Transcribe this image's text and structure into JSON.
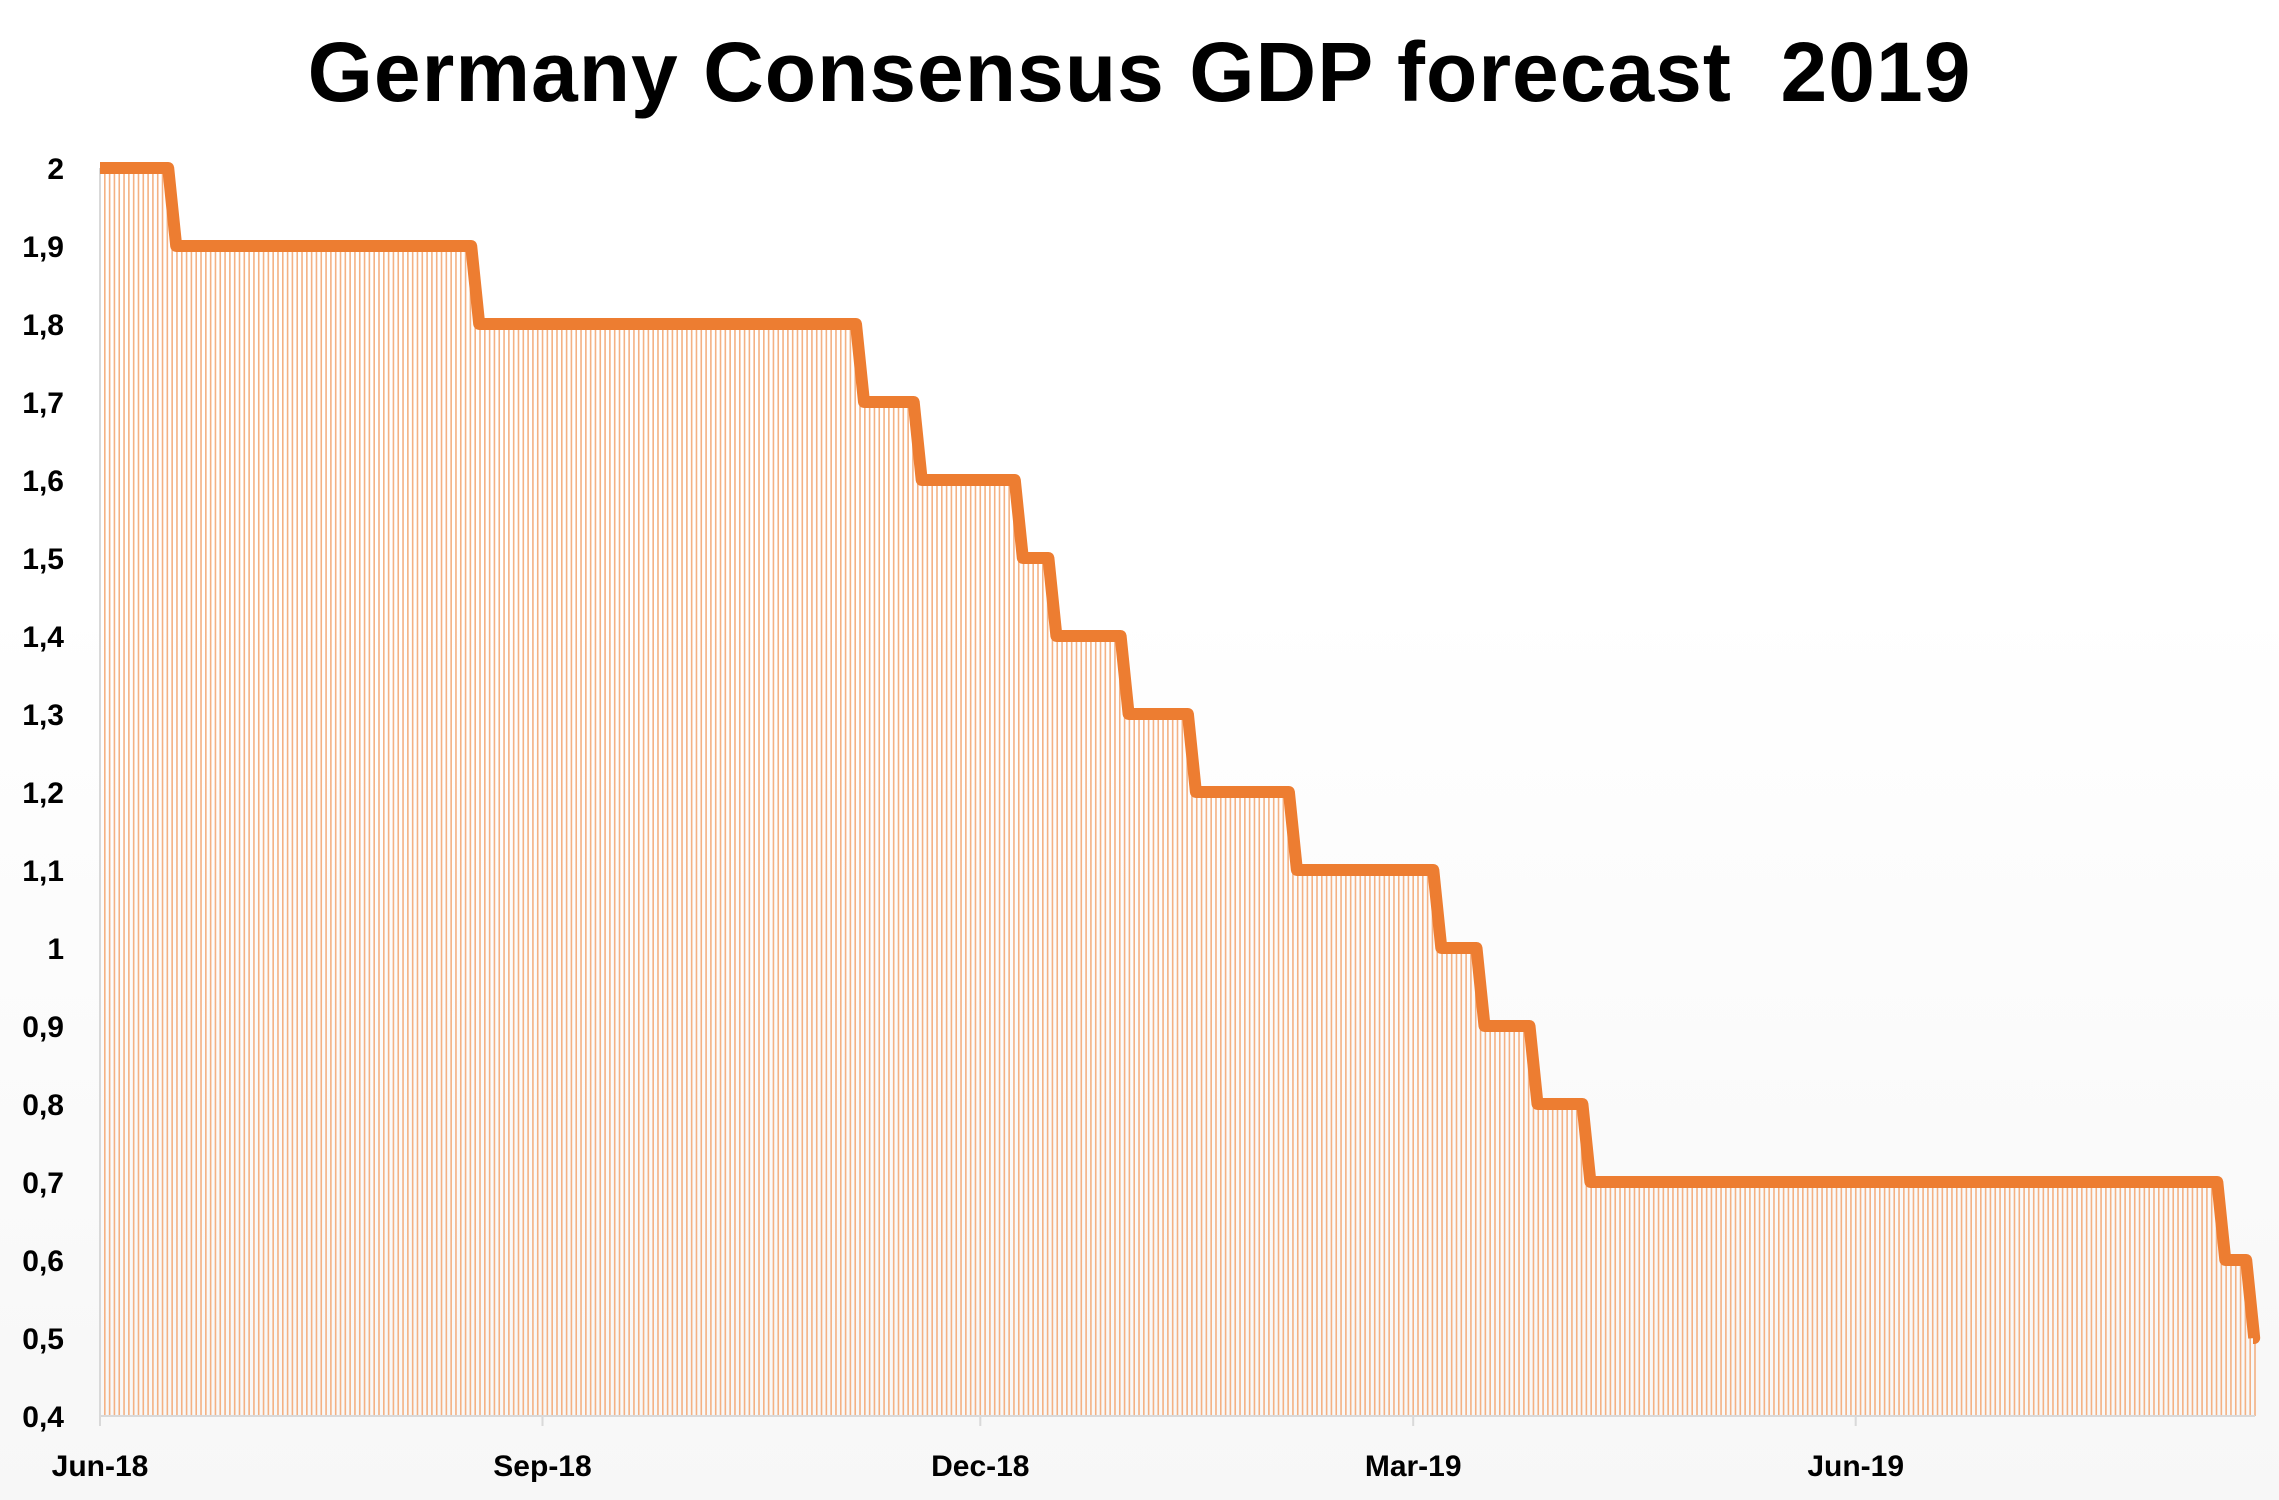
{
  "chart_data": {
    "type": "area",
    "title": "Germany Consensus GDP forecast  2019",
    "xlabel": "",
    "ylabel": "",
    "ylim": [
      0.4,
      2.0
    ],
    "y_ticks": [
      "2",
      "1,9",
      "1,8",
      "1,7",
      "1,6",
      "1,5",
      "1,4",
      "1,3",
      "1,2",
      "1,1",
      "1",
      "0,9",
      "0,8",
      "0,7",
      "0,6",
      "0,5",
      "0,4"
    ],
    "x_range": [
      "2018-06-01",
      "2019-08-23"
    ],
    "x_ticks": [
      {
        "date": "2018-06-01",
        "label": "Jun-18"
      },
      {
        "date": "2018-09-01",
        "label": "Sep-18"
      },
      {
        "date": "2018-12-01",
        "label": "Dec-18"
      },
      {
        "date": "2019-03-01",
        "label": "Mar-19"
      },
      {
        "date": "2019-06-01",
        "label": "Jun-19"
      }
    ],
    "grid": false,
    "legend": "none",
    "line_color": "#ED7D31",
    "fill_color": "#F4B183",
    "series": [
      {
        "points": [
          {
            "date": "2018-06-01",
            "value": 2.0
          },
          {
            "date": "2018-06-16",
            "value": 1.9
          },
          {
            "date": "2018-08-18",
            "value": 1.8
          },
          {
            "date": "2018-11-06",
            "value": 1.7
          },
          {
            "date": "2018-11-18",
            "value": 1.6
          },
          {
            "date": "2018-12-09",
            "value": 1.5
          },
          {
            "date": "2018-12-16",
            "value": 1.4
          },
          {
            "date": "2018-12-31",
            "value": 1.3
          },
          {
            "date": "2019-01-14",
            "value": 1.2
          },
          {
            "date": "2019-02-04",
            "value": 1.1
          },
          {
            "date": "2019-03-06",
            "value": 1.0
          },
          {
            "date": "2019-03-15",
            "value": 0.9
          },
          {
            "date": "2019-03-26",
            "value": 0.8
          },
          {
            "date": "2019-04-06",
            "value": 0.7
          },
          {
            "date": "2019-08-16",
            "value": 0.6
          },
          {
            "date": "2019-08-22",
            "value": 0.5
          }
        ]
      }
    ]
  }
}
